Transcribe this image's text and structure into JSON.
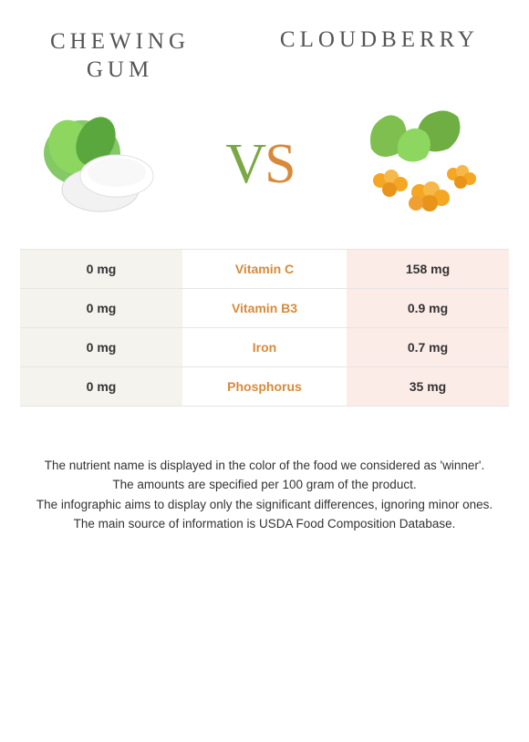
{
  "header": {
    "left_title_line1": "CHEWING",
    "left_title_line2": "GUM",
    "right_title": "CLOUDBERRY"
  },
  "vs": {
    "v": "V",
    "s": "S"
  },
  "colors": {
    "left_accent": "#7aa845",
    "right_accent": "#d88a3a",
    "left_cell_bg": "#f4f3ee",
    "right_cell_bg": "#fcece8",
    "border": "#e5e5e5",
    "nutrient_winner": "#d88a3a"
  },
  "nutrients": [
    {
      "name": "Vitamin C",
      "left": "0 mg",
      "right": "158 mg",
      "winner": "right"
    },
    {
      "name": "Vitamin B3",
      "left": "0 mg",
      "right": "0.9 mg",
      "winner": "right"
    },
    {
      "name": "Iron",
      "left": "0 mg",
      "right": "0.7 mg",
      "winner": "right"
    },
    {
      "name": "Phosphorus",
      "left": "0 mg",
      "right": "35 mg",
      "winner": "right"
    }
  ],
  "footnotes": [
    "The nutrient name is displayed in the color of the food we considered as 'winner'.",
    "The amounts are specified per 100 gram of the product.",
    "The infographic aims to display only the significant differences, ignoring minor ones.",
    "The main source of information is USDA Food Composition Database."
  ]
}
